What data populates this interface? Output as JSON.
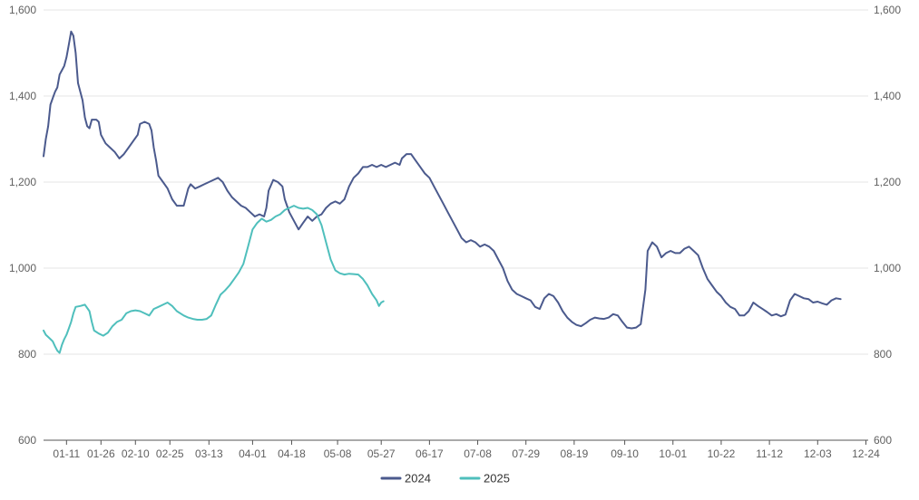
{
  "chart_data": {
    "type": "line",
    "x_ticks": [
      "01-11",
      "01-26",
      "02-10",
      "02-25",
      "03-13",
      "04-01",
      "04-18",
      "05-08",
      "05-27",
      "06-17",
      "07-08",
      "07-29",
      "08-19",
      "09-10",
      "10-01",
      "10-22",
      "11-12",
      "12-03",
      "12-24"
    ],
    "y_ticks_left": [
      "600",
      "800",
      "1,000",
      "1,200",
      "1,400",
      "1,600"
    ],
    "y_ticks_right": [
      "600",
      "800",
      "1,000",
      "1,200",
      "1,400",
      "1,600"
    ],
    "ylim": [
      600,
      1600
    ],
    "grid": true,
    "legend_position": "bottom-center",
    "series": [
      {
        "name": "2024",
        "color": "#4b5a8d",
        "points": [
          [
            "01-01",
            1260
          ],
          [
            "01-02",
            1300
          ],
          [
            "01-03",
            1330
          ],
          [
            "01-04",
            1380
          ],
          [
            "01-05",
            1395
          ],
          [
            "01-06",
            1410
          ],
          [
            "01-07",
            1420
          ],
          [
            "01-08",
            1450
          ],
          [
            "01-09",
            1460
          ],
          [
            "01-10",
            1470
          ],
          [
            "01-11",
            1490
          ],
          [
            "01-12",
            1520
          ],
          [
            "01-13",
            1550
          ],
          [
            "01-14",
            1540
          ],
          [
            "01-15",
            1500
          ],
          [
            "01-16",
            1430
          ],
          [
            "01-17",
            1410
          ],
          [
            "01-18",
            1390
          ],
          [
            "01-19",
            1350
          ],
          [
            "01-20",
            1330
          ],
          [
            "01-21",
            1325
          ],
          [
            "01-22",
            1345
          ],
          [
            "01-24",
            1345
          ],
          [
            "01-25",
            1340
          ],
          [
            "01-26",
            1310
          ],
          [
            "01-28",
            1290
          ],
          [
            "01-30",
            1280
          ],
          [
            "02-01",
            1270
          ],
          [
            "02-03",
            1255
          ],
          [
            "02-05",
            1265
          ],
          [
            "02-07",
            1280
          ],
          [
            "02-09",
            1295
          ],
          [
            "02-11",
            1310
          ],
          [
            "02-12",
            1335
          ],
          [
            "02-14",
            1340
          ],
          [
            "02-16",
            1335
          ],
          [
            "02-17",
            1320
          ],
          [
            "02-18",
            1280
          ],
          [
            "02-19",
            1250
          ],
          [
            "02-20",
            1215
          ],
          [
            "02-22",
            1200
          ],
          [
            "02-24",
            1185
          ],
          [
            "02-26",
            1160
          ],
          [
            "02-28",
            1145
          ],
          [
            "03-02",
            1145
          ],
          [
            "03-04",
            1185
          ],
          [
            "03-05",
            1195
          ],
          [
            "03-07",
            1185
          ],
          [
            "03-09",
            1190
          ],
          [
            "03-11",
            1195
          ],
          [
            "03-13",
            1200
          ],
          [
            "03-15",
            1205
          ],
          [
            "03-17",
            1210
          ],
          [
            "03-19",
            1200
          ],
          [
            "03-21",
            1180
          ],
          [
            "03-23",
            1165
          ],
          [
            "03-25",
            1155
          ],
          [
            "03-27",
            1145
          ],
          [
            "03-29",
            1140
          ],
          [
            "03-31",
            1130
          ],
          [
            "04-02",
            1120
          ],
          [
            "04-04",
            1125
          ],
          [
            "04-06",
            1120
          ],
          [
            "04-07",
            1140
          ],
          [
            "04-08",
            1180
          ],
          [
            "04-10",
            1205
          ],
          [
            "04-12",
            1200
          ],
          [
            "04-14",
            1190
          ],
          [
            "04-15",
            1160
          ],
          [
            "04-17",
            1130
          ],
          [
            "04-19",
            1110
          ],
          [
            "04-21",
            1090
          ],
          [
            "04-23",
            1105
          ],
          [
            "04-25",
            1120
          ],
          [
            "04-27",
            1110
          ],
          [
            "04-29",
            1120
          ],
          [
            "05-01",
            1125
          ],
          [
            "05-03",
            1140
          ],
          [
            "05-05",
            1150
          ],
          [
            "05-07",
            1155
          ],
          [
            "05-09",
            1150
          ],
          [
            "05-11",
            1160
          ],
          [
            "05-13",
            1190
          ],
          [
            "05-15",
            1210
          ],
          [
            "05-17",
            1220
          ],
          [
            "05-19",
            1235
          ],
          [
            "05-21",
            1235
          ],
          [
            "05-23",
            1240
          ],
          [
            "05-25",
            1235
          ],
          [
            "05-27",
            1240
          ],
          [
            "05-29",
            1235
          ],
          [
            "05-31",
            1240
          ],
          [
            "06-02",
            1245
          ],
          [
            "06-04",
            1240
          ],
          [
            "06-05",
            1255
          ],
          [
            "06-07",
            1265
          ],
          [
            "06-09",
            1265
          ],
          [
            "06-11",
            1250
          ],
          [
            "06-13",
            1235
          ],
          [
            "06-15",
            1220
          ],
          [
            "06-17",
            1210
          ],
          [
            "06-19",
            1190
          ],
          [
            "06-21",
            1170
          ],
          [
            "06-23",
            1150
          ],
          [
            "06-25",
            1130
          ],
          [
            "06-27",
            1110
          ],
          [
            "06-29",
            1090
          ],
          [
            "07-01",
            1070
          ],
          [
            "07-03",
            1060
          ],
          [
            "07-05",
            1065
          ],
          [
            "07-07",
            1060
          ],
          [
            "07-09",
            1050
          ],
          [
            "07-11",
            1055
          ],
          [
            "07-13",
            1050
          ],
          [
            "07-15",
            1040
          ],
          [
            "07-17",
            1020
          ],
          [
            "07-19",
            1000
          ],
          [
            "07-21",
            970
          ],
          [
            "07-23",
            950
          ],
          [
            "07-25",
            940
          ],
          [
            "07-27",
            935
          ],
          [
            "07-29",
            930
          ],
          [
            "07-31",
            925
          ],
          [
            "08-02",
            910
          ],
          [
            "08-04",
            905
          ],
          [
            "08-06",
            930
          ],
          [
            "08-08",
            940
          ],
          [
            "08-10",
            935
          ],
          [
            "08-12",
            920
          ],
          [
            "08-14",
            900
          ],
          [
            "08-16",
            885
          ],
          [
            "08-18",
            875
          ],
          [
            "08-20",
            868
          ],
          [
            "08-22",
            865
          ],
          [
            "08-24",
            872
          ],
          [
            "08-26",
            880
          ],
          [
            "08-28",
            885
          ],
          [
            "08-30",
            883
          ],
          [
            "09-01",
            882
          ],
          [
            "09-03",
            885
          ],
          [
            "09-05",
            893
          ],
          [
            "09-07",
            890
          ],
          [
            "09-09",
            875
          ],
          [
            "09-11",
            862
          ],
          [
            "09-13",
            860
          ],
          [
            "09-15",
            862
          ],
          [
            "09-17",
            870
          ],
          [
            "09-19",
            950
          ],
          [
            "09-20",
            1040
          ],
          [
            "09-22",
            1060
          ],
          [
            "09-24",
            1050
          ],
          [
            "09-26",
            1025
          ],
          [
            "09-28",
            1035
          ],
          [
            "09-30",
            1040
          ],
          [
            "10-02",
            1035
          ],
          [
            "10-04",
            1035
          ],
          [
            "10-06",
            1045
          ],
          [
            "10-08",
            1050
          ],
          [
            "10-10",
            1040
          ],
          [
            "10-12",
            1030
          ],
          [
            "10-14",
            1000
          ],
          [
            "10-16",
            975
          ],
          [
            "10-18",
            960
          ],
          [
            "10-20",
            945
          ],
          [
            "10-22",
            935
          ],
          [
            "10-24",
            920
          ],
          [
            "10-26",
            910
          ],
          [
            "10-28",
            905
          ],
          [
            "10-30",
            890
          ],
          [
            "11-01",
            890
          ],
          [
            "11-03",
            900
          ],
          [
            "11-05",
            920
          ],
          [
            "11-07",
            912
          ],
          [
            "11-09",
            905
          ],
          [
            "11-11",
            898
          ],
          [
            "11-13",
            890
          ],
          [
            "11-15",
            893
          ],
          [
            "11-17",
            888
          ],
          [
            "11-19",
            892
          ],
          [
            "11-21",
            925
          ],
          [
            "11-23",
            940
          ],
          [
            "11-25",
            935
          ],
          [
            "11-27",
            930
          ],
          [
            "11-29",
            928
          ],
          [
            "12-01",
            920
          ],
          [
            "12-03",
            922
          ],
          [
            "12-05",
            918
          ],
          [
            "12-07",
            915
          ],
          [
            "12-09",
            925
          ],
          [
            "12-11",
            930
          ],
          [
            "12-13",
            928
          ]
        ]
      },
      {
        "name": "2025",
        "color": "#4fbfbc",
        "points": [
          [
            "01-01",
            855
          ],
          [
            "01-02",
            845
          ],
          [
            "01-03",
            840
          ],
          [
            "01-04",
            835
          ],
          [
            "01-05",
            830
          ],
          [
            "01-06",
            818
          ],
          [
            "01-07",
            808
          ],
          [
            "01-08",
            803
          ],
          [
            "01-09",
            822
          ],
          [
            "01-10",
            835
          ],
          [
            "01-11",
            845
          ],
          [
            "01-12",
            860
          ],
          [
            "01-13",
            875
          ],
          [
            "01-14",
            895
          ],
          [
            "01-15",
            910
          ],
          [
            "01-17",
            912
          ],
          [
            "01-19",
            915
          ],
          [
            "01-21",
            900
          ],
          [
            "01-22",
            875
          ],
          [
            "01-23",
            855
          ],
          [
            "01-25",
            848
          ],
          [
            "01-27",
            843
          ],
          [
            "01-29",
            850
          ],
          [
            "01-31",
            865
          ],
          [
            "02-02",
            875
          ],
          [
            "02-04",
            880
          ],
          [
            "02-06",
            895
          ],
          [
            "02-08",
            900
          ],
          [
            "02-10",
            902
          ],
          [
            "02-12",
            900
          ],
          [
            "02-14",
            895
          ],
          [
            "02-16",
            890
          ],
          [
            "02-18",
            905
          ],
          [
            "02-20",
            910
          ],
          [
            "02-22",
            915
          ],
          [
            "02-24",
            920
          ],
          [
            "02-26",
            912
          ],
          [
            "02-28",
            900
          ],
          [
            "03-02",
            890
          ],
          [
            "03-04",
            885
          ],
          [
            "03-06",
            882
          ],
          [
            "03-08",
            880
          ],
          [
            "03-10",
            880
          ],
          [
            "03-12",
            882
          ],
          [
            "03-14",
            890
          ],
          [
            "03-16",
            915
          ],
          [
            "03-18",
            938
          ],
          [
            "03-20",
            948
          ],
          [
            "03-22",
            960
          ],
          [
            "03-24",
            975
          ],
          [
            "03-26",
            990
          ],
          [
            "03-28",
            1010
          ],
          [
            "03-30",
            1050
          ],
          [
            "04-01",
            1090
          ],
          [
            "04-03",
            1105
          ],
          [
            "04-05",
            1115
          ],
          [
            "04-07",
            1108
          ],
          [
            "04-09",
            1112
          ],
          [
            "04-11",
            1120
          ],
          [
            "04-13",
            1125
          ],
          [
            "04-15",
            1135
          ],
          [
            "04-17",
            1140
          ],
          [
            "04-19",
            1145
          ],
          [
            "04-21",
            1140
          ],
          [
            "04-23",
            1138
          ],
          [
            "04-25",
            1140
          ],
          [
            "04-27",
            1135
          ],
          [
            "04-29",
            1125
          ],
          [
            "05-01",
            1100
          ],
          [
            "05-03",
            1060
          ],
          [
            "05-05",
            1020
          ],
          [
            "05-07",
            995
          ],
          [
            "05-09",
            988
          ],
          [
            "05-11",
            985
          ],
          [
            "05-13",
            987
          ],
          [
            "05-15",
            986
          ],
          [
            "05-17",
            985
          ],
          [
            "05-19",
            975
          ],
          [
            "05-21",
            960
          ],
          [
            "05-23",
            940
          ],
          [
            "05-25",
            925
          ],
          [
            "05-26",
            912
          ],
          [
            "05-27",
            920
          ],
          [
            "05-28",
            923
          ]
        ]
      }
    ]
  }
}
